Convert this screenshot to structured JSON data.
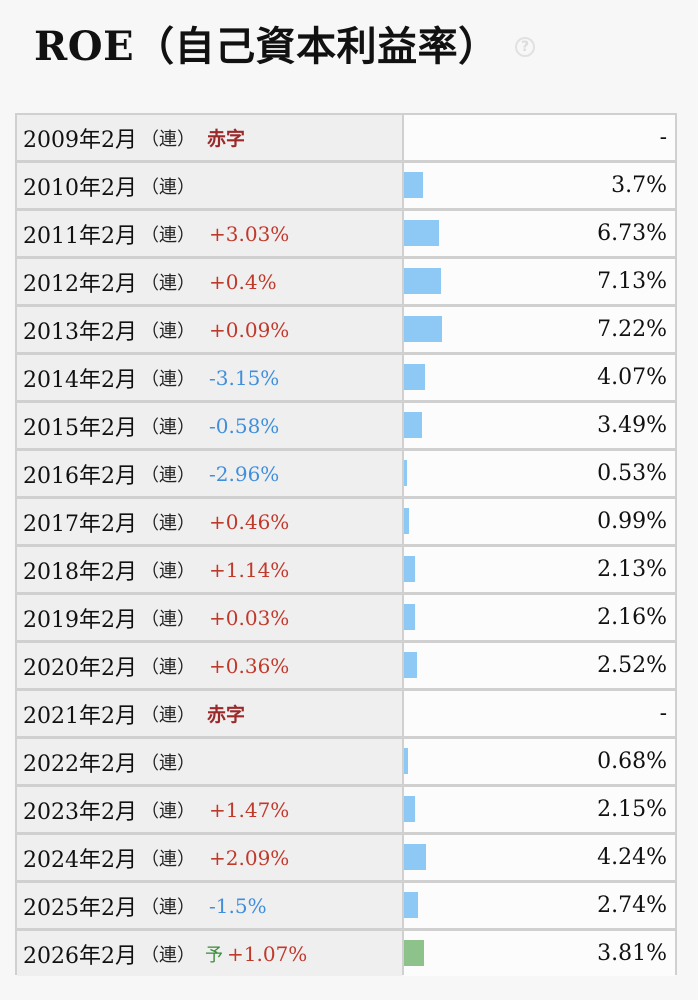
{
  "title": "ROE（自己資本利益率）",
  "help_icon": "question-mark-icon",
  "colors": {
    "bar": "#8ec8f5",
    "forecast_bar": "#8dc38a",
    "positive": "#c0392b",
    "negative": "#3f8fdc",
    "deficit": "#9a2a2a"
  },
  "rows": [
    {
      "year": "2009年2月",
      "ren": "（連）",
      "change": "赤字",
      "change_type": "deficit",
      "value": "-",
      "roe": null
    },
    {
      "year": "2010年2月",
      "ren": "（連）",
      "change": "",
      "change_type": "none",
      "value": "3.7%",
      "roe": 3.7
    },
    {
      "year": "2011年2月",
      "ren": "（連）",
      "change": "+3.03%",
      "change_type": "pos",
      "value": "6.73%",
      "roe": 6.73
    },
    {
      "year": "2012年2月",
      "ren": "（連）",
      "change": "+0.4%",
      "change_type": "pos",
      "value": "7.13%",
      "roe": 7.13
    },
    {
      "year": "2013年2月",
      "ren": "（連）",
      "change": "+0.09%",
      "change_type": "pos",
      "value": "7.22%",
      "roe": 7.22
    },
    {
      "year": "2014年2月",
      "ren": "（連）",
      "change": "-3.15%",
      "change_type": "neg",
      "value": "4.07%",
      "roe": 4.07
    },
    {
      "year": "2015年2月",
      "ren": "（連）",
      "change": "-0.58%",
      "change_type": "neg",
      "value": "3.49%",
      "roe": 3.49
    },
    {
      "year": "2016年2月",
      "ren": "（連）",
      "change": "-2.96%",
      "change_type": "neg",
      "value": "0.53%",
      "roe": 0.53
    },
    {
      "year": "2017年2月",
      "ren": "（連）",
      "change": "+0.46%",
      "change_type": "pos",
      "value": "0.99%",
      "roe": 0.99
    },
    {
      "year": "2018年2月",
      "ren": "（連）",
      "change": "+1.14%",
      "change_type": "pos",
      "value": "2.13%",
      "roe": 2.13
    },
    {
      "year": "2019年2月",
      "ren": "（連）",
      "change": "+0.03%",
      "change_type": "pos",
      "value": "2.16%",
      "roe": 2.16
    },
    {
      "year": "2020年2月",
      "ren": "（連）",
      "change": "+0.36%",
      "change_type": "pos",
      "value": "2.52%",
      "roe": 2.52
    },
    {
      "year": "2021年2月",
      "ren": "（連）",
      "change": "赤字",
      "change_type": "deficit",
      "value": "-",
      "roe": null
    },
    {
      "year": "2022年2月",
      "ren": "（連）",
      "change": "",
      "change_type": "none",
      "value": "0.68%",
      "roe": 0.68
    },
    {
      "year": "2023年2月",
      "ren": "（連）",
      "change": "+1.47%",
      "change_type": "pos",
      "value": "2.15%",
      "roe": 2.15
    },
    {
      "year": "2024年2月",
      "ren": "（連）",
      "change": "+2.09%",
      "change_type": "pos",
      "value": "4.24%",
      "roe": 4.24
    },
    {
      "year": "2025年2月",
      "ren": "（連）",
      "change": "-1.5%",
      "change_type": "neg",
      "value": "2.74%",
      "roe": 2.74
    },
    {
      "year": "2026年2月",
      "ren": "（連）",
      "forecast_mark": "予",
      "change": "+1.07%",
      "change_type": "pos",
      "value": "3.81%",
      "roe": 3.81,
      "forecast": true
    }
  ]
}
